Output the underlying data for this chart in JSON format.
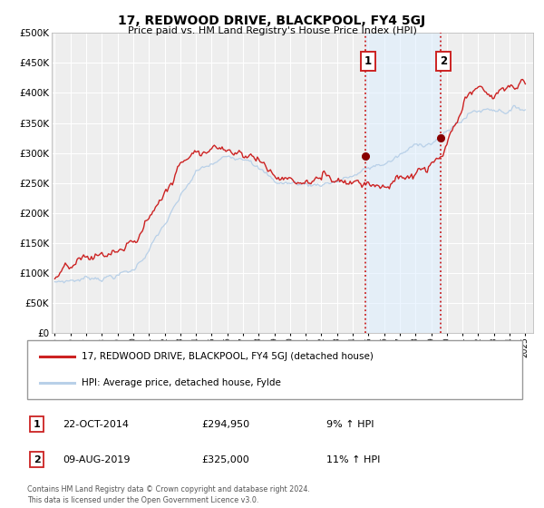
{
  "title": "17, REDWOOD DRIVE, BLACKPOOL, FY4 5GJ",
  "subtitle": "Price paid vs. HM Land Registry's House Price Index (HPI)",
  "hpi_color": "#b8d0e8",
  "price_color": "#cc2222",
  "marker_color": "#880000",
  "vline_color": "#cc2222",
  "shade_color": "#ddeeff",
  "bg_color": "#eeeeee",
  "ylim": [
    0,
    500000
  ],
  "yticks": [
    0,
    50000,
    100000,
    150000,
    200000,
    250000,
    300000,
    350000,
    400000,
    450000,
    500000
  ],
  "ytick_labels": [
    "£0",
    "£50K",
    "£100K",
    "£150K",
    "£200K",
    "£250K",
    "£300K",
    "£350K",
    "£400K",
    "£450K",
    "£500K"
  ],
  "xlim": [
    1994.8,
    2025.5
  ],
  "event1_x": 2014.81,
  "event1_y": 294950,
  "event2_x": 2019.61,
  "event2_y": 325000,
  "event1_label": "1",
  "event2_label": "2",
  "event1_date": "22-OCT-2014",
  "event1_price": "£294,950",
  "event1_hpi": "9% ↑ HPI",
  "event2_date": "09-AUG-2019",
  "event2_price": "£325,000",
  "event2_hpi": "11% ↑ HPI",
  "legend_line1": "17, REDWOOD DRIVE, BLACKPOOL, FY4 5GJ (detached house)",
  "legend_line2": "HPI: Average price, detached house, Fylde",
  "footer1": "Contains HM Land Registry data © Crown copyright and database right 2024.",
  "footer2": "This data is licensed under the Open Government Licence v3.0."
}
